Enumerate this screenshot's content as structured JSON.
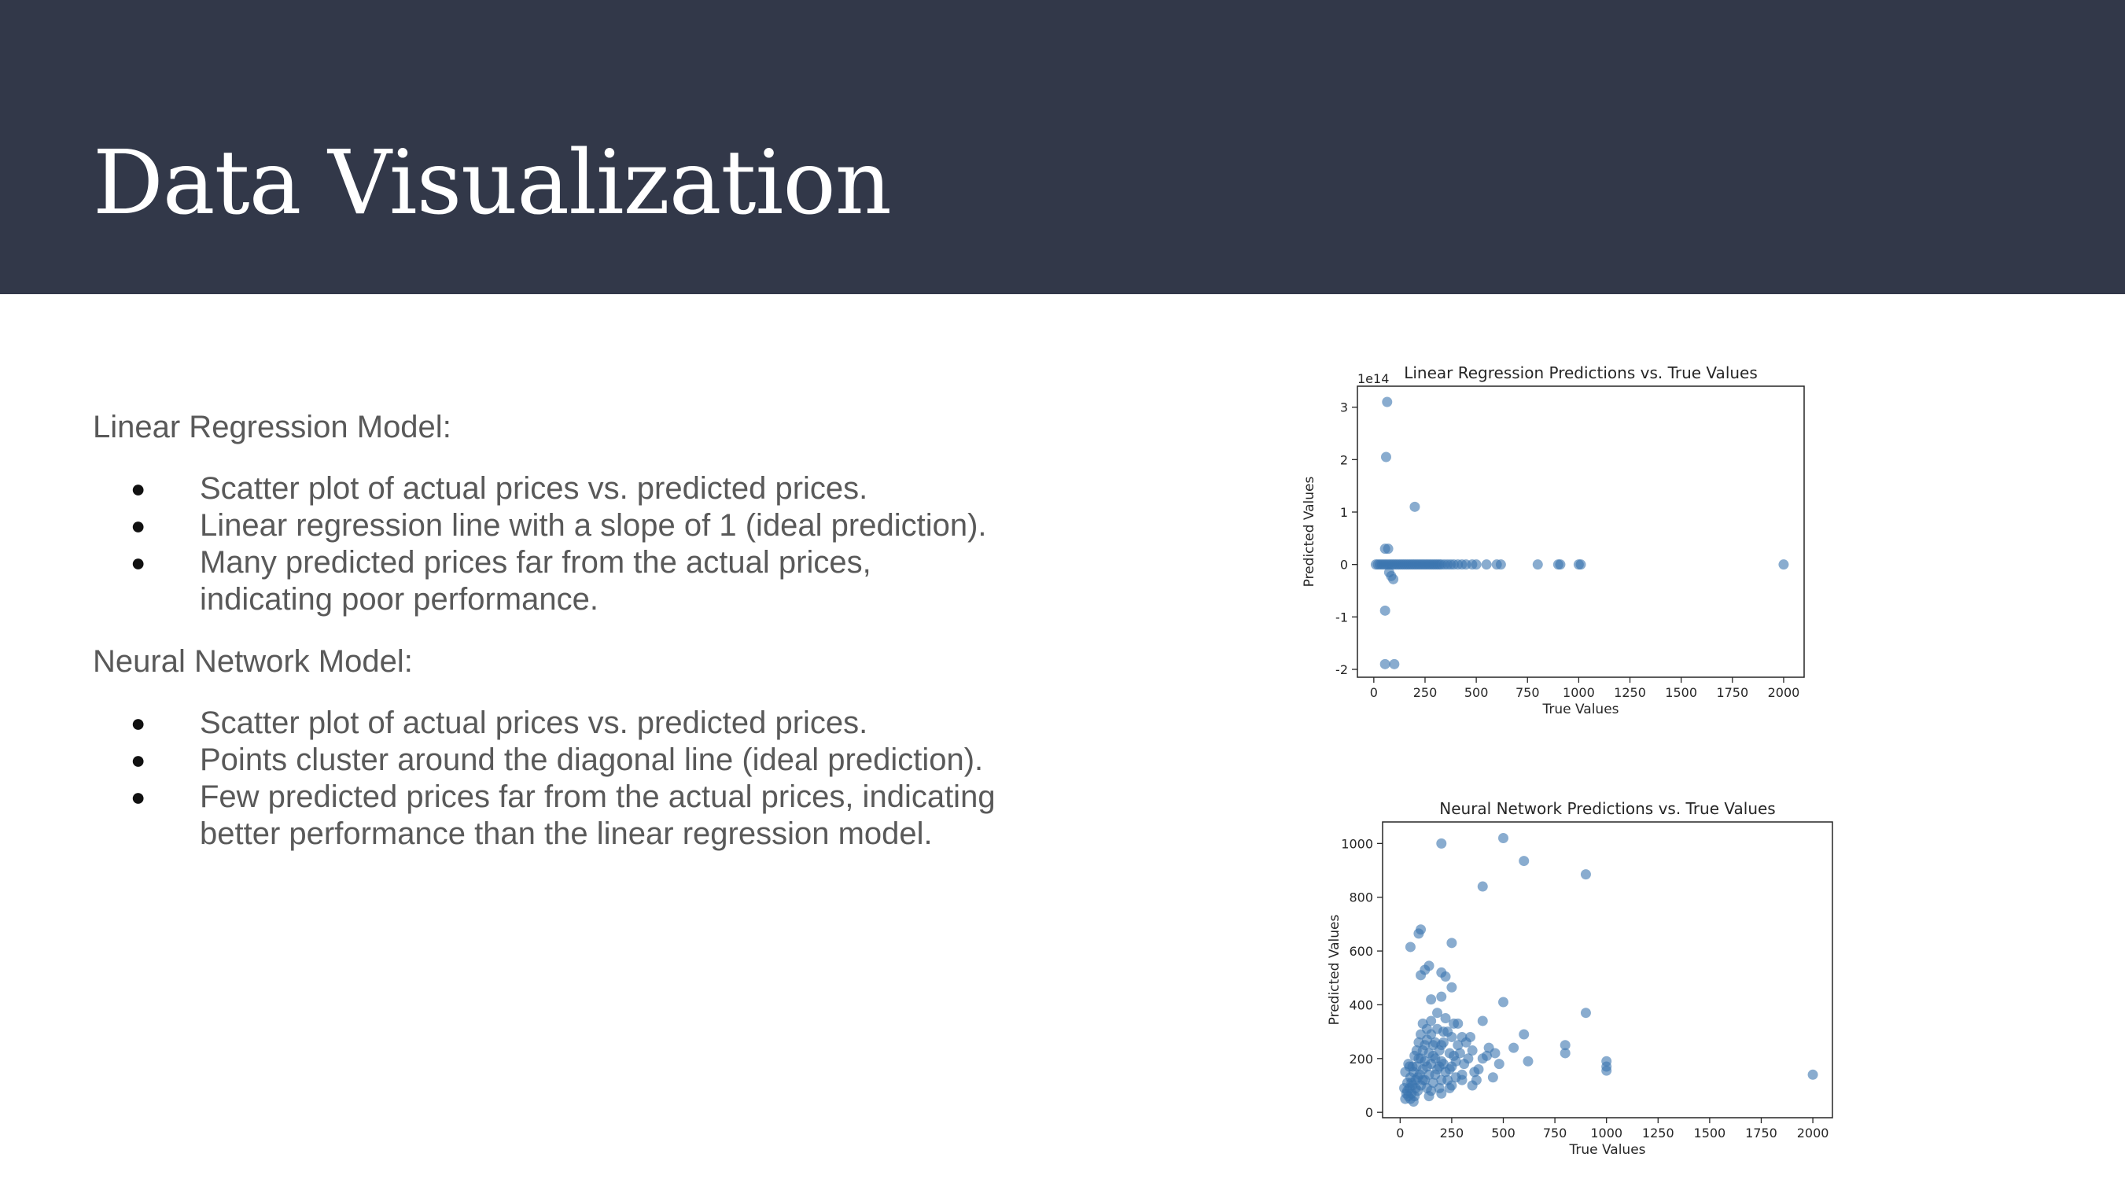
{
  "slide": {
    "title": "Data Visualization"
  },
  "sections": [
    {
      "heading": "Linear Regression Model:",
      "bullets": [
        "Scatter plot of actual prices vs. predicted prices.",
        "Linear regression line with a slope of 1 (ideal prediction).",
        "Many predicted prices far from the actual prices, indicating poor performance."
      ]
    },
    {
      "heading": "Neural Network Model:",
      "bullets": [
        "Scatter plot of actual prices vs. predicted prices.",
        "Points cluster around the diagonal line (ideal prediction).",
        "Few predicted prices far from the actual prices, indicating better performance than the linear regression model."
      ]
    }
  ],
  "chart_data": [
    {
      "type": "scatter",
      "title": "Linear Regression Predictions vs. True Values",
      "xlabel": "True Values",
      "ylabel": "Predicted Values",
      "y_offset_label": "1e14",
      "xlim": [
        -80,
        2100
      ],
      "ylim": [
        -2.15,
        3.4
      ],
      "xticks": [
        0,
        250,
        500,
        750,
        1000,
        1250,
        1500,
        1750,
        2000
      ],
      "yticks": [
        -2,
        -1,
        0,
        1,
        2,
        3
      ],
      "grid": false,
      "marker_color": "#3b75af",
      "points": [
        [
          65,
          3.1
        ],
        [
          60,
          2.05
        ],
        [
          200,
          1.1
        ],
        [
          55,
          0.3
        ],
        [
          70,
          0.3
        ],
        [
          75,
          -0.15
        ],
        [
          85,
          -0.22
        ],
        [
          95,
          -0.28
        ],
        [
          55,
          -0.88
        ],
        [
          55,
          -1.9
        ],
        [
          100,
          -1.9
        ],
        [
          10,
          0
        ],
        [
          20,
          0
        ],
        [
          30,
          0
        ],
        [
          40,
          0
        ],
        [
          50,
          0
        ],
        [
          60,
          0
        ],
        [
          70,
          0
        ],
        [
          80,
          0
        ],
        [
          90,
          0
        ],
        [
          100,
          0
        ],
        [
          110,
          0
        ],
        [
          120,
          0
        ],
        [
          130,
          0
        ],
        [
          140,
          0
        ],
        [
          150,
          0
        ],
        [
          160,
          0
        ],
        [
          170,
          0
        ],
        [
          180,
          0
        ],
        [
          190,
          0
        ],
        [
          200,
          0
        ],
        [
          210,
          0
        ],
        [
          220,
          0
        ],
        [
          230,
          0
        ],
        [
          240,
          0
        ],
        [
          250,
          0
        ],
        [
          260,
          0
        ],
        [
          270,
          0
        ],
        [
          280,
          0
        ],
        [
          290,
          0
        ],
        [
          300,
          0
        ],
        [
          310,
          0
        ],
        [
          320,
          0
        ],
        [
          330,
          0
        ],
        [
          345,
          0
        ],
        [
          360,
          0
        ],
        [
          375,
          0
        ],
        [
          390,
          0
        ],
        [
          410,
          0
        ],
        [
          430,
          0
        ],
        [
          450,
          0
        ],
        [
          480,
          0
        ],
        [
          500,
          0
        ],
        [
          550,
          0
        ],
        [
          600,
          0
        ],
        [
          620,
          0
        ],
        [
          800,
          0
        ],
        [
          900,
          0
        ],
        [
          910,
          0
        ],
        [
          1000,
          0
        ],
        [
          1010,
          0
        ],
        [
          2000,
          0
        ]
      ]
    },
    {
      "type": "scatter",
      "title": "Neural Network Predictions vs. True Values",
      "xlabel": "True Values",
      "ylabel": "Predicted Values",
      "xlim": [
        -85,
        2095
      ],
      "ylim": [
        -20,
        1080
      ],
      "xticks": [
        0,
        250,
        500,
        750,
        1000,
        1250,
        1500,
        1750,
        2000
      ],
      "yticks": [
        0,
        200,
        400,
        600,
        800,
        1000
      ],
      "grid": false,
      "marker_color": "#3b75af",
      "points": [
        [
          200,
          1000
        ],
        [
          500,
          1020
        ],
        [
          600,
          935
        ],
        [
          900,
          885
        ],
        [
          400,
          840
        ],
        [
          100,
          680
        ],
        [
          90,
          665
        ],
        [
          50,
          615
        ],
        [
          250,
          630
        ],
        [
          140,
          545
        ],
        [
          120,
          530
        ],
        [
          100,
          510
        ],
        [
          200,
          520
        ],
        [
          220,
          505
        ],
        [
          250,
          465
        ],
        [
          200,
          430
        ],
        [
          150,
          420
        ],
        [
          500,
          410
        ],
        [
          900,
          370
        ],
        [
          400,
          340
        ],
        [
          600,
          290
        ],
        [
          800,
          250
        ],
        [
          800,
          220
        ],
        [
          1000,
          190
        ],
        [
          1000,
          170
        ],
        [
          1000,
          155
        ],
        [
          2000,
          140
        ],
        [
          620,
          190
        ],
        [
          550,
          240
        ],
        [
          480,
          180
        ],
        [
          420,
          210
        ],
        [
          380,
          160
        ],
        [
          350,
          230
        ],
        [
          330,
          200
        ],
        [
          300,
          280
        ],
        [
          300,
          140
        ],
        [
          280,
          250
        ],
        [
          270,
          190
        ],
        [
          260,
          330
        ],
        [
          250,
          170
        ],
        [
          240,
          220
        ],
        [
          230,
          300
        ],
        [
          220,
          150
        ],
        [
          210,
          260
        ],
        [
          200,
          190
        ],
        [
          200,
          120
        ],
        [
          190,
          230
        ],
        [
          180,
          310
        ],
        [
          180,
          160
        ],
        [
          170,
          200
        ],
        [
          160,
          250
        ],
        [
          160,
          110
        ],
        [
          150,
          180
        ],
        [
          150,
          340
        ],
        [
          140,
          220
        ],
        [
          140,
          140
        ],
        [
          130,
          270
        ],
        [
          130,
          90
        ],
        [
          120,
          190
        ],
        [
          120,
          120
        ],
        [
          110,
          230
        ],
        [
          110,
          160
        ],
        [
          100,
          100
        ],
        [
          100,
          200
        ],
        [
          95,
          140
        ],
        [
          90,
          260
        ],
        [
          85,
          80
        ],
        [
          80,
          170
        ],
        [
          75,
          120
        ],
        [
          70,
          60
        ],
        [
          70,
          210
        ],
        [
          65,
          150
        ],
        [
          60,
          100
        ],
        [
          55,
          70
        ],
        [
          50,
          130
        ],
        [
          50,
          50
        ],
        [
          45,
          90
        ],
        [
          40,
          60
        ],
        [
          40,
          180
        ],
        [
          35,
          110
        ],
        [
          30,
          70
        ],
        [
          25,
          150
        ],
        [
          20,
          90
        ],
        [
          150,
          80
        ],
        [
          200,
          70
        ],
        [
          250,
          100
        ],
        [
          300,
          120
        ],
        [
          350,
          100
        ],
        [
          450,
          130
        ],
        [
          250,
          280
        ],
        [
          280,
          330
        ],
        [
          320,
          260
        ],
        [
          220,
          350
        ],
        [
          180,
          370
        ],
        [
          130,
          310
        ],
        [
          110,
          330
        ],
        [
          200,
          250
        ],
        [
          240,
          160
        ],
        [
          260,
          210
        ],
        [
          210,
          180
        ],
        [
          170,
          140
        ],
        [
          190,
          90
        ],
        [
          230,
          120
        ],
        [
          140,
          60
        ],
        [
          160,
          210
        ],
        [
          120,
          250
        ],
        [
          90,
          200
        ],
        [
          60,
          170
        ],
        [
          80,
          230
        ],
        [
          100,
          290
        ],
        [
          210,
          300
        ],
        [
          270,
          130
        ],
        [
          310,
          180
        ],
        [
          360,
          150
        ],
        [
          400,
          200
        ],
        [
          430,
          240
        ],
        [
          460,
          220
        ],
        [
          150,
          290
        ],
        [
          170,
          260
        ],
        [
          190,
          170
        ],
        [
          130,
          170
        ],
        [
          110,
          120
        ],
        [
          75,
          90
        ],
        [
          65,
          40
        ],
        [
          85,
          130
        ],
        [
          55,
          110
        ],
        [
          45,
          170
        ],
        [
          35,
          80
        ],
        [
          25,
          50
        ],
        [
          240,
          90
        ],
        [
          290,
          220
        ],
        [
          340,
          280
        ],
        [
          370,
          120
        ]
      ]
    }
  ]
}
